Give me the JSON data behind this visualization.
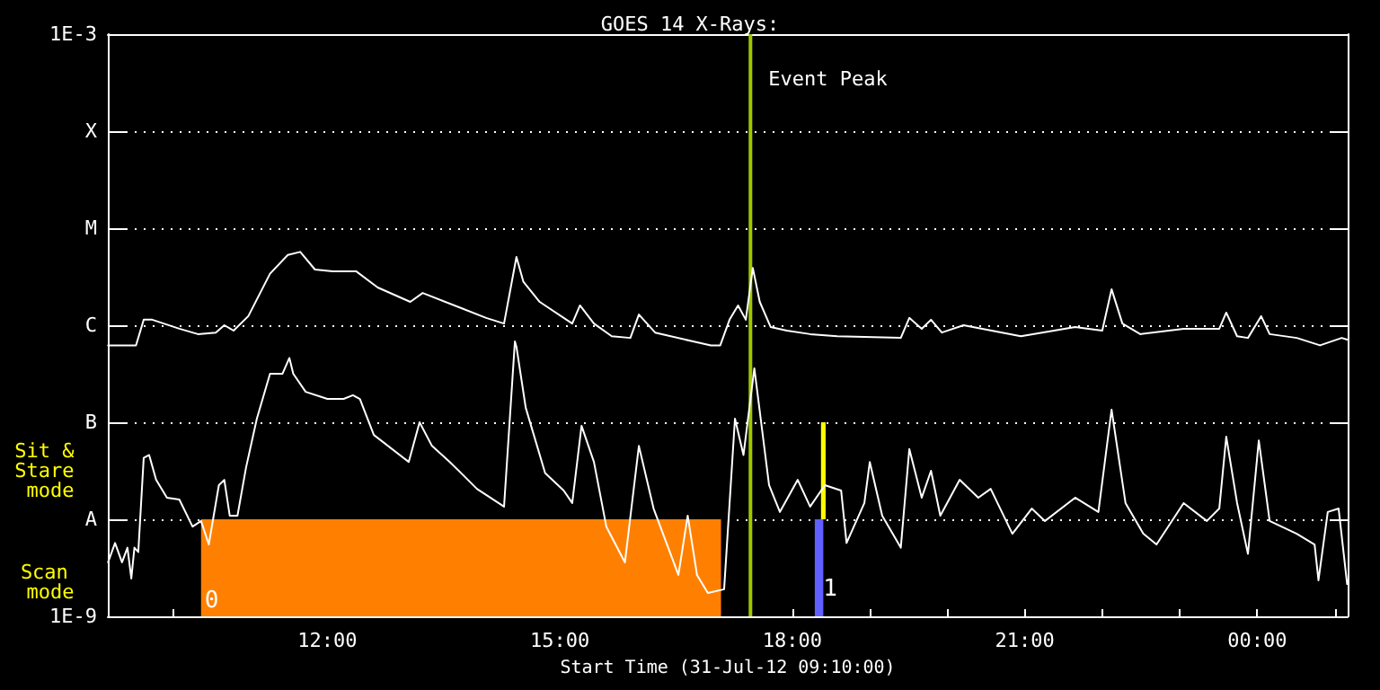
{
  "chart_data": {
    "type": "line",
    "title": "GOES 14 X-Rays:",
    "xlabel": "Start Time (31-Jul-12 09:10:00)",
    "annotations": [
      "Sit & Stare mode",
      "Scan mode"
    ],
    "log": "y",
    "grid": "y",
    "marker": "none",
    "line_style": "solid",
    "xlim": [
      9.1667,
      25.1667
    ],
    "xticks": [
      {
        "value": 10,
        "label": null
      },
      {
        "value": 11,
        "label": null
      },
      {
        "value": 12,
        "label": "12:00"
      },
      {
        "value": 13,
        "label": null
      },
      {
        "value": 14,
        "label": null
      },
      {
        "value": 15,
        "label": "15:00"
      },
      {
        "value": 16,
        "label": null
      },
      {
        "value": 17,
        "label": null
      },
      {
        "value": 18,
        "label": "18:00"
      },
      {
        "value": 19,
        "label": null
      },
      {
        "value": 20,
        "label": null
      },
      {
        "value": 21,
        "label": "21:00"
      },
      {
        "value": 22,
        "label": null
      },
      {
        "value": 23,
        "label": null
      },
      {
        "value": 24,
        "label": "00:00"
      },
      {
        "value": 25,
        "label": null
      }
    ],
    "ylim": [
      1e-09,
      0.001
    ],
    "yticks": [
      {
        "value": 1e-09,
        "label": "1E-9"
      },
      {
        "value": 1e-08,
        "label": "A"
      },
      {
        "value": 1e-07,
        "label": "B"
      },
      {
        "value": 1e-06,
        "label": "C"
      },
      {
        "value": 1e-05,
        "label": "M"
      },
      {
        "value": 0.0001,
        "label": "X"
      },
      {
        "value": 0.001,
        "label": "1E-3"
      }
    ],
    "ref_lines": [
      {
        "axis": "x",
        "value": 17.46,
        "label": "Event Peak",
        "color": "#a0c800"
      }
    ],
    "bands": [
      {
        "axis": "x",
        "from": 10.37,
        "to": 17.08,
        "label": "0",
        "color": "#ff8000"
      },
      {
        "axis": "x",
        "from": 18.29,
        "to": 18.4,
        "label": "1",
        "color": "#6060ff"
      },
      {
        "axis": "x",
        "from": 18.37,
        "to": 18.43,
        "color": "#ffff00"
      }
    ],
    "series": [
      {
        "color": "#ffffff",
        "x": [
          9.17,
          9.53,
          9.63,
          9.74,
          10.09,
          10.33,
          10.56,
          10.67,
          10.79,
          10.98,
          11.26,
          11.49,
          11.65,
          11.84,
          12.07,
          12.37,
          12.65,
          13.07,
          13.23,
          13.7,
          14.05,
          14.28,
          14.44,
          14.53,
          14.74,
          15.16,
          15.26,
          15.44,
          15.67,
          15.91,
          16.02,
          16.23,
          16.72,
          16.95,
          17.07,
          17.19,
          17.3,
          17.4,
          17.49,
          17.58,
          17.72,
          17.93,
          18.23,
          18.58,
          19.4,
          19.51,
          19.67,
          19.79,
          19.93,
          20.21,
          20.95,
          21.65,
          22.0,
          22.12,
          22.26,
          22.49,
          23.05,
          23.51,
          23.6,
          23.74,
          23.88,
          24.05,
          24.16,
          24.51,
          24.81,
          25.09,
          25.16
        ],
        "values": [
          6.2e-07,
          6.2e-07,
          1.14e-06,
          1.14e-06,
          9.2e-07,
          8.1e-07,
          8.4e-07,
          1e-06,
          8.8e-07,
          1.24e-06,
          3.4e-06,
          5.3e-06,
          5.7e-06,
          3.75e-06,
          3.6e-06,
          3.6e-06,
          2.45e-06,
          1.74e-06,
          2.15e-06,
          1.53e-06,
          1.19e-06,
          1.04e-06,
          5.05e-06,
          2.8e-06,
          1.74e-06,
          1.04e-06,
          1.6e-06,
          1.04e-06,
          7.7e-07,
          7.4e-07,
          1.29e-06,
          8.4e-07,
          6.8e-07,
          6.2e-07,
          6.2e-07,
          1.14e-06,
          1.6e-06,
          1.14e-06,
          3.9e-06,
          1.74e-06,
          9.6e-07,
          8.8e-07,
          8.1e-07,
          7.7e-07,
          7.4e-07,
          1.19e-06,
          9.2e-07,
          1.14e-06,
          8.4e-07,
          1e-06,
          7.7e-07,
          9.6e-07,
          8.8e-07,
          2.35e-06,
          1.04e-06,
          8.1e-07,
          9.2e-07,
          9.2e-07,
          1.35e-06,
          7.7e-07,
          7.4e-07,
          1.24e-06,
          8.1e-07,
          7.4e-07,
          6.2e-07,
          7.4e-07,
          7.1e-07
        ]
      },
      {
        "color": "#ffffff",
        "x": [
          9.17,
          9.26,
          9.35,
          9.42,
          9.47,
          9.51,
          9.56,
          9.63,
          9.7,
          9.79,
          9.93,
          10.09,
          10.26,
          10.37,
          10.47,
          10.6,
          10.67,
          10.74,
          10.84,
          10.95,
          11.09,
          11.26,
          11.42,
          11.51,
          11.56,
          11.72,
          12.0,
          12.21,
          12.33,
          12.42,
          12.6,
          13.05,
          13.19,
          13.35,
          13.58,
          13.93,
          14.28,
          14.42,
          14.44,
          14.56,
          14.81,
          15.05,
          15.16,
          15.28,
          15.44,
          15.6,
          15.84,
          16.02,
          16.21,
          16.53,
          16.65,
          16.77,
          16.91,
          17.12,
          17.26,
          17.37,
          17.51,
          17.7,
          17.84,
          18.07,
          18.23,
          18.42,
          18.63,
          18.7,
          18.93,
          19.0,
          19.16,
          19.4,
          19.51,
          19.67,
          19.79,
          19.91,
          20.16,
          20.4,
          20.56,
          20.84,
          21.09,
          21.26,
          21.65,
          21.95,
          22.12,
          22.3,
          22.53,
          22.7,
          23.05,
          23.35,
          23.51,
          23.6,
          23.74,
          23.88,
          24.02,
          24.16,
          24.51,
          24.74,
          24.79,
          24.91,
          25.05,
          25.16
        ],
        "values": [
          3.6e-09,
          5.7e-09,
          3.6e-09,
          5.1e-09,
          2.45e-09,
          5.1e-09,
          4.6e-09,
          4.3e-08,
          4.6e-08,
          2.55e-08,
          1.67e-08,
          1.6e-08,
          8.4e-09,
          9.6e-09,
          5.5e-09,
          2.25e-08,
          2.55e-08,
          1.09e-08,
          1.09e-08,
          3.4e-08,
          1.09e-07,
          3.16e-07,
          3.16e-07,
          4.6e-07,
          3.16e-07,
          2.06e-07,
          1.74e-07,
          1.74e-07,
          1.9e-07,
          1.74e-07,
          7.4e-08,
          3.9e-08,
          1e-07,
          5.7e-08,
          3.9e-08,
          2.06e-08,
          1.35e-08,
          6.8e-07,
          6e-07,
          1.41e-07,
          3e-08,
          1.98e-08,
          1.47e-08,
          9.2e-08,
          3.9e-08,
          8.4e-09,
          3.6e-09,
          5.7e-08,
          1.29e-08,
          2.67e-09,
          1.09e-08,
          2.67e-09,
          1.74e-09,
          1.9e-09,
          1.09e-07,
          4.6e-08,
          3.6e-07,
          2.25e-08,
          1.19e-08,
          2.55e-08,
          1.35e-08,
          2.25e-08,
          1.98e-08,
          5.7e-09,
          1.47e-08,
          3.9e-08,
          1.09e-08,
          5.1e-09,
          5.3e-08,
          1.67e-08,
          3.16e-08,
          1.09e-08,
          2.55e-08,
          1.67e-08,
          2.06e-08,
          7.1e-09,
          1.29e-08,
          9.6e-09,
          1.67e-08,
          1.19e-08,
          1.35e-07,
          1.47e-08,
          7.1e-09,
          5.5e-09,
          1.47e-08,
          9.6e-09,
          1.29e-08,
          7.1e-08,
          1.47e-08,
          4.4e-09,
          6.5e-08,
          9.6e-09,
          7.1e-09,
          5.5e-09,
          2.35e-09,
          1.19e-08,
          1.29e-08,
          2.15e-09
        ]
      }
    ]
  }
}
